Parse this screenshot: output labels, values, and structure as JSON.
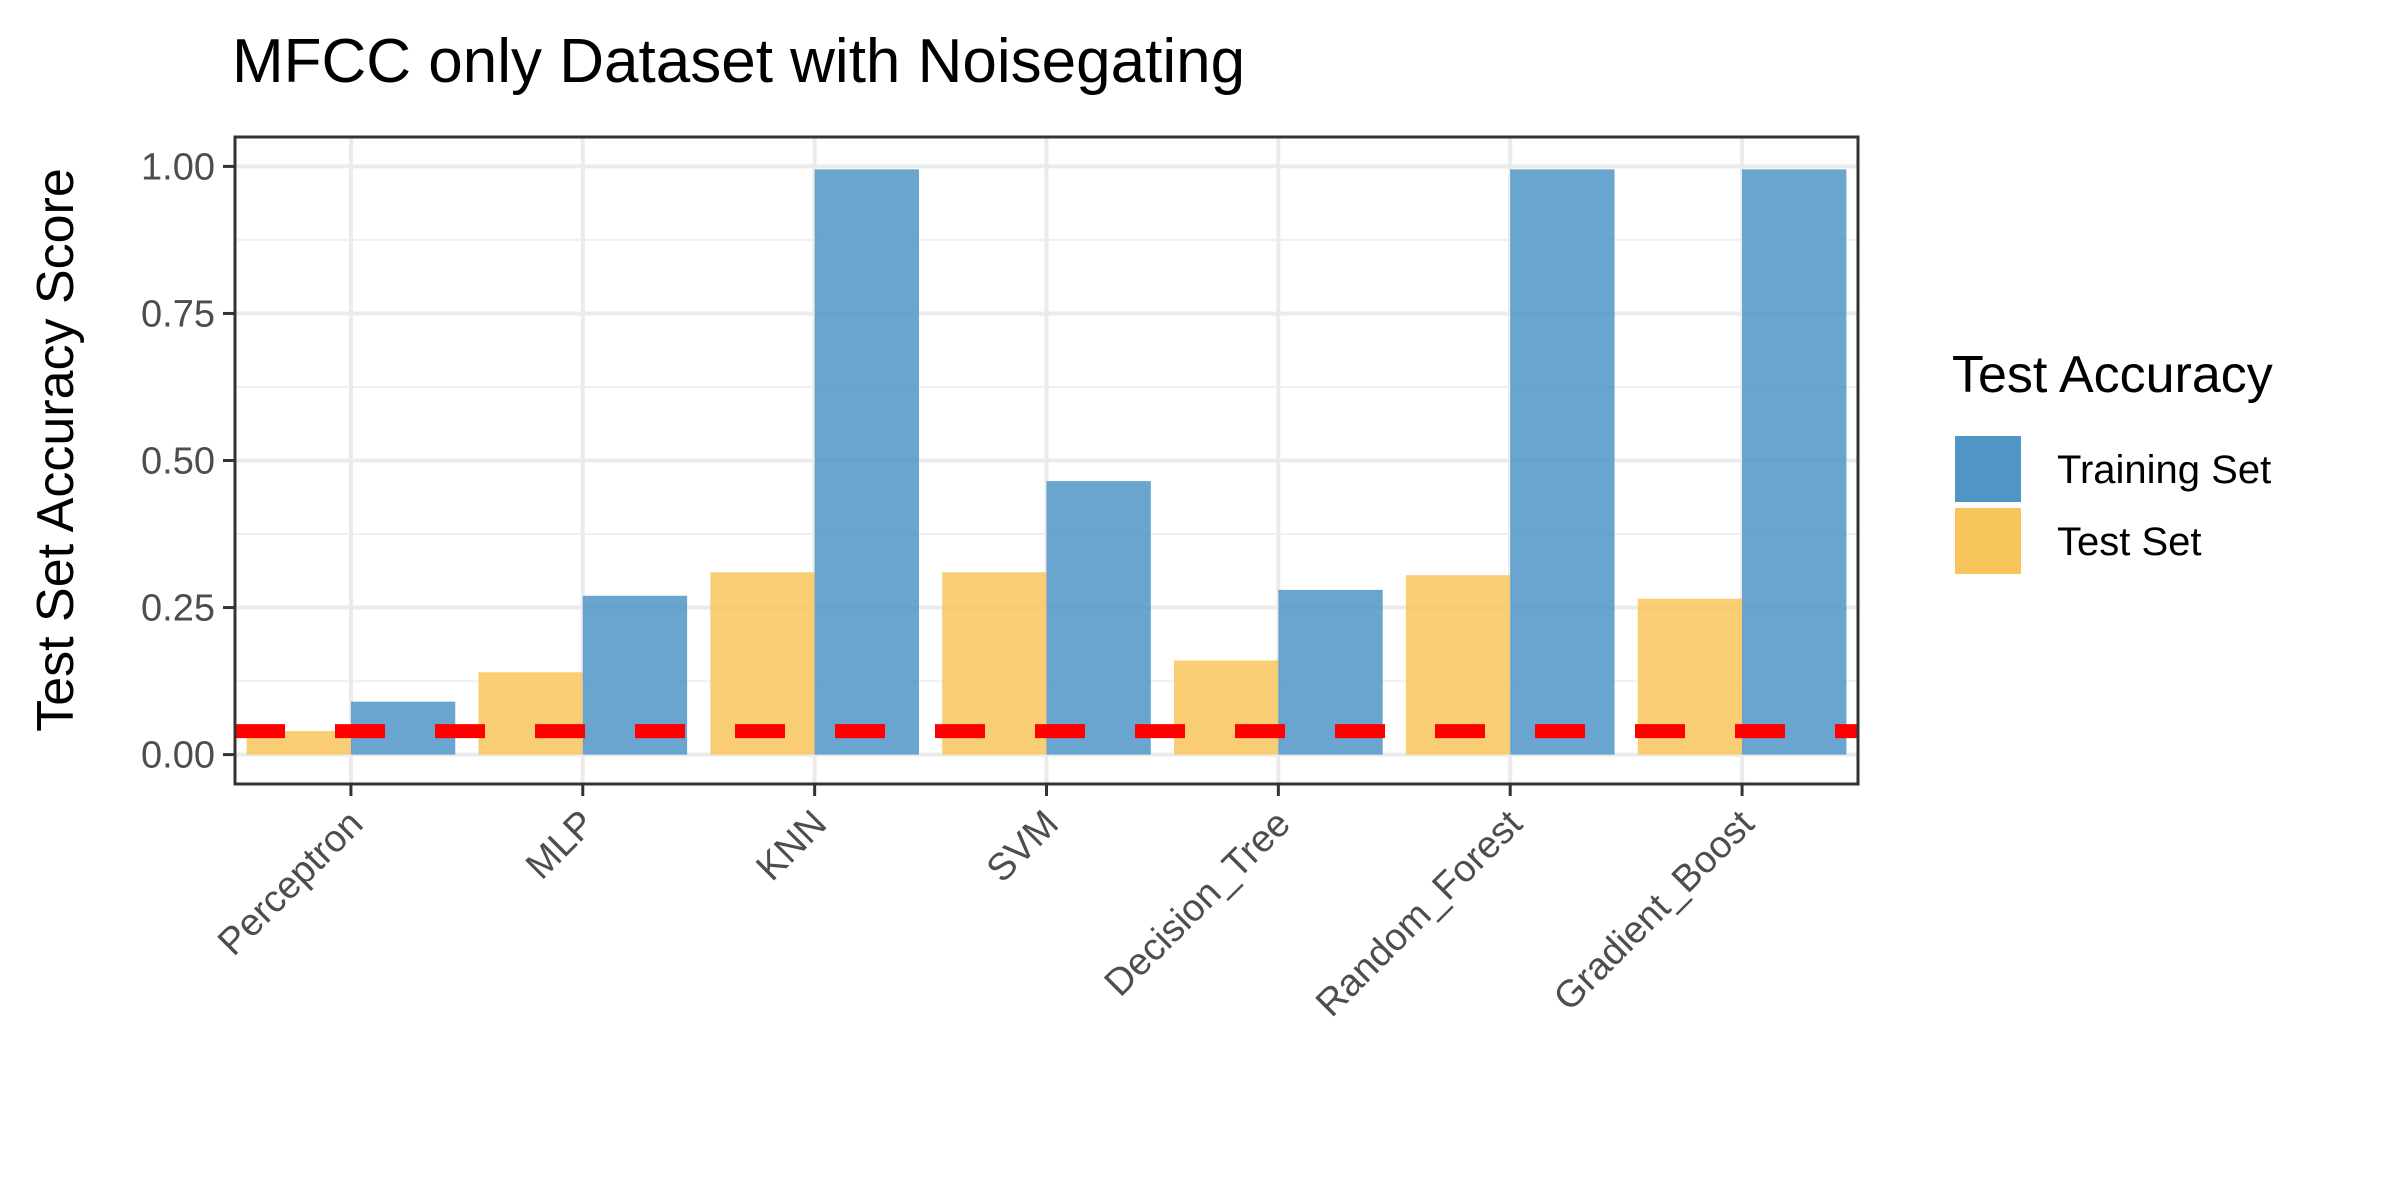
{
  "chart_data": {
    "type": "bar",
    "title": "MFCC only Dataset with Noisegating",
    "xlabel": "",
    "ylabel": "Test Set Accuracy Score",
    "categories": [
      "Perceptron",
      "MLP",
      "KNN",
      "SVM",
      "Decision_Tree",
      "Random_Forest",
      "Gradient_Boost"
    ],
    "series": [
      {
        "name": "Test Set",
        "color": "#f8c55d",
        "values": [
          0.04,
          0.14,
          0.31,
          0.31,
          0.16,
          0.305,
          0.265
        ]
      },
      {
        "name": "Training Set",
        "color": "#4f95c5",
        "values": [
          0.09,
          0.27,
          0.995,
          0.465,
          0.28,
          0.995,
          0.995
        ]
      }
    ],
    "yticks": [
      0.0,
      0.25,
      0.5,
      0.75,
      1.0
    ],
    "ytick_labels": [
      "0.00",
      "0.25",
      "0.50",
      "0.75",
      "1.00"
    ],
    "ylim": [
      -0.05,
      1.05
    ],
    "reference_line": {
      "value": 0.04,
      "color": "#ff0000",
      "style": "dashed"
    },
    "grid": true,
    "legend": {
      "title": "Test Accuracy",
      "placement": "right",
      "entries": [
        {
          "label": "Training Set",
          "color": "#4f95c5"
        },
        {
          "label": "Test Set",
          "color": "#f8c55d"
        }
      ]
    }
  }
}
